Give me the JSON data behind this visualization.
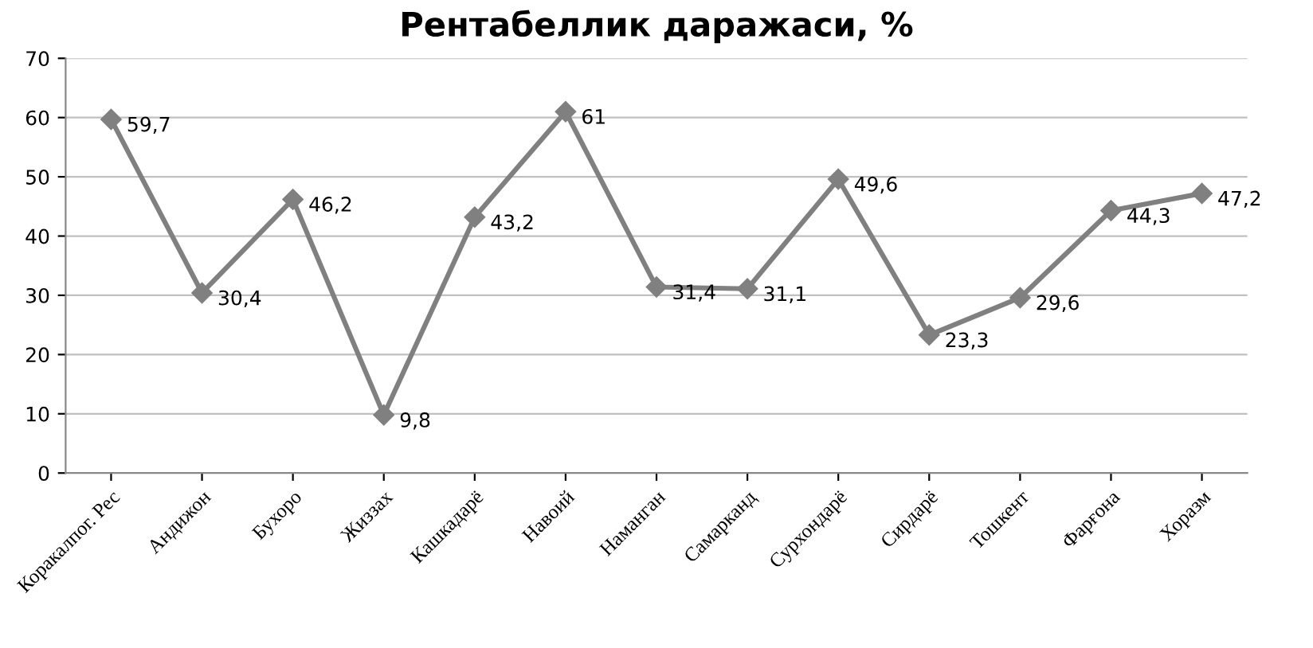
{
  "chart_data": {
    "type": "line",
    "title": "Рентабеллик даражаси, %",
    "categories": [
      "Коракалпог. Рес",
      "Андижон",
      "Бухоро",
      "Жиззах",
      "Кашкадарё",
      "Навоий",
      "Наманган",
      "Самарканд",
      "Сурхондарё",
      "Сирдарё",
      "Тошкент",
      "Фарғона",
      "Хоразм"
    ],
    "series": [
      {
        "color": "#808080",
        "values": [
          59.7,
          30.4,
          46.2,
          9.8,
          43.2,
          61,
          31.4,
          31.1,
          49.6,
          23.3,
          29.6,
          44.3,
          47.2
        ],
        "value_labels": [
          "59,7",
          "30,4",
          "46,2",
          "9,8",
          "43,2",
          "61",
          "31,4",
          "31,1",
          "49,6",
          "23,3",
          "29,6",
          "44,3",
          "47,2"
        ]
      }
    ],
    "ylim": [
      0,
      70
    ],
    "yticks": [
      0,
      10,
      20,
      30,
      40,
      50,
      60,
      70
    ],
    "grid": "y",
    "marker": "diamond",
    "line_style": "solid",
    "legend": false
  }
}
